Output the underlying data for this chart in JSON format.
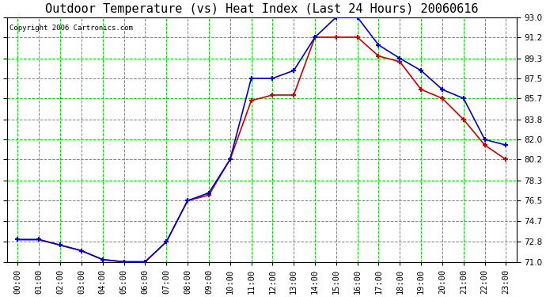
{
  "title": "Outdoor Temperature (vs) Heat Index (Last 24 Hours) 20060616",
  "copyright_text": "Copyright 2006 Cartronics.com",
  "x_labels": [
    "00:00",
    "01:00",
    "02:00",
    "03:00",
    "04:00",
    "05:00",
    "06:00",
    "07:00",
    "08:00",
    "09:00",
    "10:00",
    "11:00",
    "12:00",
    "13:00",
    "14:00",
    "15:00",
    "16:00",
    "17:00",
    "18:00",
    "19:00",
    "20:00",
    "21:00",
    "22:00",
    "23:00"
  ],
  "temp_data": [
    73.0,
    73.0,
    72.5,
    72.0,
    71.2,
    71.0,
    71.0,
    72.8,
    76.5,
    77.0,
    80.2,
    85.5,
    86.0,
    86.0,
    91.2,
    91.2,
    91.2,
    89.5,
    89.0,
    86.5,
    85.7,
    83.8,
    81.5,
    80.2
  ],
  "heat_index_data": [
    73.0,
    73.0,
    72.5,
    72.0,
    71.2,
    71.0,
    71.0,
    72.8,
    76.5,
    77.2,
    80.2,
    87.5,
    87.5,
    88.2,
    91.2,
    93.0,
    93.0,
    90.5,
    89.3,
    88.2,
    86.5,
    85.7,
    82.0,
    81.5
  ],
  "ylim_min": 71.0,
  "ylim_max": 93.0,
  "yticks": [
    71.0,
    72.8,
    74.7,
    76.5,
    78.3,
    80.2,
    82.0,
    83.8,
    85.7,
    87.5,
    89.3,
    91.2,
    93.0
  ],
  "bg_color": "#ffffff",
  "plot_bg_color": "#ffffff",
  "grid_color": "#00dd00",
  "temp_color": "#cc0000",
  "heat_index_color": "#0000cc",
  "title_fontsize": 11,
  "copyright_fontsize": 6.5,
  "tick_fontsize": 7.5
}
